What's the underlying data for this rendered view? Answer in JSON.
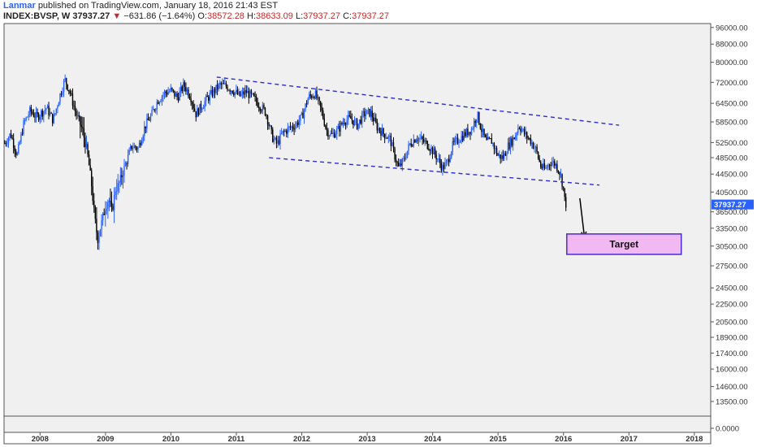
{
  "header": {
    "author": "Lanmar",
    "published_text": "published on TradingView.com, January 18, 2016 21:43 EST",
    "symbol": "INDEX:BVSP, W",
    "last": "37937.27",
    "down_arrow": "▼",
    "change": "−631.86 (−1.64%)",
    "open_label": "O:",
    "open": "38572.28",
    "high_label": "H:",
    "high": "38633.09",
    "low_label": "L:",
    "low": "37937.27",
    "close_label": "C:",
    "close": "37937.27"
  },
  "chart_data": {
    "type": "candlestick",
    "symbol": "INDEX:BVSP",
    "interval": "W",
    "y_scale": "log",
    "ylim": [
      12500,
      98000
    ],
    "y_ticks": [
      "96000.00",
      "88000.00",
      "80000.00",
      "72000.00",
      "64500.00",
      "58500.00",
      "52500.00",
      "48500.00",
      "44500.00",
      "40500.00",
      "36500.00",
      "33500.00",
      "30500.00",
      "27500.00",
      "24500.00",
      "22500.00",
      "20500.00",
      "18900.00",
      "17400.00",
      "16000.00",
      "14600.00",
      "13500.00"
    ],
    "y_tick_values": [
      96000,
      88000,
      80000,
      72000,
      64500,
      58500,
      52500,
      48500,
      44500,
      40500,
      36500,
      33500,
      30500,
      27500,
      24500,
      22500,
      20500,
      18900,
      17400,
      16000,
      14600,
      13500
    ],
    "volume_tick": "0.0000",
    "x_ticks": [
      "2008",
      "2009",
      "2010",
      "2011",
      "2012",
      "2013",
      "2014",
      "2015",
      "2016",
      "2017",
      "2018"
    ],
    "x_tick_years": [
      2008,
      2009,
      2010,
      2011,
      2012,
      2013,
      2014,
      2015,
      2016,
      2017,
      2018
    ],
    "xlim": [
      2007.45,
      2018.25
    ],
    "price_label": "37937.27",
    "price_path": [
      [
        2007.45,
        52000
      ],
      [
        2007.55,
        55000
      ],
      [
        2007.65,
        49000
      ],
      [
        2007.75,
        58000
      ],
      [
        2007.85,
        62000
      ],
      [
        2007.95,
        60000
      ],
      [
        2008.1,
        63000
      ],
      [
        2008.2,
        59000
      ],
      [
        2008.3,
        67000
      ],
      [
        2008.38,
        73000
      ],
      [
        2008.45,
        69000
      ],
      [
        2008.55,
        61000
      ],
      [
        2008.65,
        56000
      ],
      [
        2008.72,
        50000
      ],
      [
        2008.78,
        43000
      ],
      [
        2008.83,
        36000
      ],
      [
        2008.88,
        31500
      ],
      [
        2008.93,
        34000
      ],
      [
        2009.0,
        37500
      ],
      [
        2009.05,
        39000
      ],
      [
        2009.1,
        36500
      ],
      [
        2009.15,
        41000
      ],
      [
        2009.2,
        42000
      ],
      [
        2009.3,
        46500
      ],
      [
        2009.4,
        51500
      ],
      [
        2009.5,
        51000
      ],
      [
        2009.6,
        57000
      ],
      [
        2009.7,
        60500
      ],
      [
        2009.8,
        65500
      ],
      [
        2009.9,
        68000
      ],
      [
        2010.0,
        69000
      ],
      [
        2010.1,
        66500
      ],
      [
        2010.2,
        71000
      ],
      [
        2010.3,
        67000
      ],
      [
        2010.38,
        61000
      ],
      [
        2010.45,
        63000
      ],
      [
        2010.55,
        66000
      ],
      [
        2010.65,
        68500
      ],
      [
        2010.75,
        71000
      ],
      [
        2010.85,
        70500
      ],
      [
        2010.95,
        69000
      ],
      [
        2011.05,
        67000
      ],
      [
        2011.15,
        68500
      ],
      [
        2011.25,
        66500
      ],
      [
        2011.35,
        64000
      ],
      [
        2011.45,
        61500
      ],
      [
        2011.55,
        54000
      ],
      [
        2011.62,
        52000
      ],
      [
        2011.7,
        55000
      ],
      [
        2011.8,
        56500
      ],
      [
        2011.9,
        57500
      ],
      [
        2012.0,
        60000
      ],
      [
        2012.1,
        66500
      ],
      [
        2012.2,
        68000
      ],
      [
        2012.3,
        62000
      ],
      [
        2012.38,
        56000
      ],
      [
        2012.45,
        54500
      ],
      [
        2012.55,
        56000
      ],
      [
        2012.65,
        59000
      ],
      [
        2012.75,
        59500
      ],
      [
        2012.85,
        57500
      ],
      [
        2012.95,
        61000
      ],
      [
        2013.05,
        61500
      ],
      [
        2013.15,
        57000
      ],
      [
        2013.25,
        55000
      ],
      [
        2013.35,
        53500
      ],
      [
        2013.42,
        49000
      ],
      [
        2013.48,
        46000
      ],
      [
        2013.55,
        47500
      ],
      [
        2013.65,
        52000
      ],
      [
        2013.75,
        54000
      ],
      [
        2013.85,
        53000
      ],
      [
        2013.95,
        51500
      ],
      [
        2014.05,
        49000
      ],
      [
        2014.15,
        46000
      ],
      [
        2014.22,
        47000
      ],
      [
        2014.3,
        51500
      ],
      [
        2014.4,
        53500
      ],
      [
        2014.5,
        55000
      ],
      [
        2014.6,
        56500
      ],
      [
        2014.68,
        61000
      ],
      [
        2014.75,
        56000
      ],
      [
        2014.82,
        52500
      ],
      [
        2014.9,
        53000
      ],
      [
        2015.0,
        49000
      ],
      [
        2015.08,
        48500
      ],
      [
        2015.15,
        51500
      ],
      [
        2015.25,
        54000
      ],
      [
        2015.32,
        57500
      ],
      [
        2015.4,
        55000
      ],
      [
        2015.5,
        53000
      ],
      [
        2015.58,
        50500
      ],
      [
        2015.65,
        46500
      ],
      [
        2015.72,
        45500
      ],
      [
        2015.8,
        47500
      ],
      [
        2015.87,
        47000
      ],
      [
        2015.93,
        45500
      ],
      [
        2015.97,
        43500
      ],
      [
        2016.0,
        41000
      ],
      [
        2016.02,
        38600
      ],
      [
        2016.04,
        37937
      ]
    ],
    "annotations": {
      "upper_trendline": [
        [
          2010.7,
          74000
        ],
        [
          2016.85,
          57500
        ]
      ],
      "lower_trendline": [
        [
          2011.5,
          48500
        ],
        [
          2016.55,
          42000
        ]
      ],
      "arrow": [
        [
          2016.25,
          39200
        ],
        [
          2016.32,
          32000
        ]
      ],
      "target_box": {
        "x0": 2016.05,
        "x1": 2017.8,
        "y_top": 32500,
        "y_bottom": 29200,
        "label": "Target"
      }
    },
    "colors": {
      "up": "#2962ff",
      "down": "#000000",
      "trendline": "#2b2bd6",
      "target_fill": "#f2b8f2",
      "target_border": "#4b2bd6",
      "price_label_bg": "#2962ff",
      "background": "#f0f0f0"
    }
  }
}
